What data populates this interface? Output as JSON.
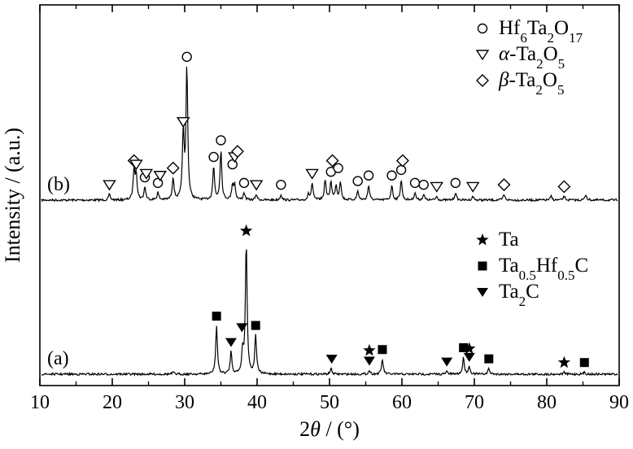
{
  "chart_data": {
    "type": "line",
    "xlabel": "2θ / (°)",
    "ylabel": "Intensity / (a.u.)",
    "xlim": [
      10,
      90
    ],
    "x_ticks": [
      10,
      20,
      30,
      40,
      50,
      60,
      70,
      80,
      90
    ],
    "grid": false,
    "series": [
      {
        "name": "(b)",
        "baseline": 1.0,
        "peaks": [
          {
            "x": 19.6,
            "h": 0.03
          },
          {
            "x": 23.0,
            "h": 0.16
          },
          {
            "x": 23.3,
            "h": 0.14
          },
          {
            "x": 24.5,
            "h": 0.07
          },
          {
            "x": 26.3,
            "h": 0.04
          },
          {
            "x": 28.4,
            "h": 0.12
          },
          {
            "x": 29.8,
            "h": 0.37
          },
          {
            "x": 30.3,
            "h": 0.72
          },
          {
            "x": 34.0,
            "h": 0.18
          },
          {
            "x": 35.0,
            "h": 0.27
          },
          {
            "x": 36.6,
            "h": 0.08
          },
          {
            "x": 36.9,
            "h": 0.08
          },
          {
            "x": 38.2,
            "h": 0.04
          },
          {
            "x": 39.9,
            "h": 0.03
          },
          {
            "x": 43.3,
            "h": 0.03
          },
          {
            "x": 47.1,
            "h": 0.03
          },
          {
            "x": 47.6,
            "h": 0.09
          },
          {
            "x": 49.4,
            "h": 0.11
          },
          {
            "x": 50.2,
            "h": 0.1
          },
          {
            "x": 50.9,
            "h": 0.08
          },
          {
            "x": 51.5,
            "h": 0.1
          },
          {
            "x": 53.9,
            "h": 0.05
          },
          {
            "x": 55.4,
            "h": 0.08
          },
          {
            "x": 58.6,
            "h": 0.08
          },
          {
            "x": 59.9,
            "h": 0.11
          },
          {
            "x": 61.8,
            "h": 0.04
          },
          {
            "x": 63.0,
            "h": 0.03
          },
          {
            "x": 64.8,
            "h": 0.02
          },
          {
            "x": 67.4,
            "h": 0.04
          },
          {
            "x": 69.8,
            "h": 0.02
          },
          {
            "x": 74.1,
            "h": 0.03
          },
          {
            "x": 80.6,
            "h": 0.02
          },
          {
            "x": 82.4,
            "h": 0.02
          },
          {
            "x": 85.4,
            "h": 0.03
          }
        ],
        "markers": [
          {
            "x": 19.6,
            "h": 0.03,
            "phase": "alpha"
          },
          {
            "x": 23.0,
            "h": 0.16,
            "phase": "beta"
          },
          {
            "x": 23.3,
            "h": 0.14,
            "phase": "alpha"
          },
          {
            "x": 24.5,
            "h": 0.07,
            "phase": "hf"
          },
          {
            "x": 24.7,
            "h": 0.09,
            "phase": "alpha"
          },
          {
            "x": 26.3,
            "h": 0.04,
            "phase": "hf"
          },
          {
            "x": 26.6,
            "h": 0.08,
            "phase": "alpha"
          },
          {
            "x": 28.4,
            "h": 0.12,
            "phase": "beta"
          },
          {
            "x": 29.8,
            "h": 0.37,
            "phase": "alpha"
          },
          {
            "x": 30.3,
            "h": 0.72,
            "phase": "hf"
          },
          {
            "x": 34.0,
            "h": 0.18,
            "phase": "hf"
          },
          {
            "x": 35.0,
            "h": 0.27,
            "phase": "hf"
          },
          {
            "x": 36.6,
            "h": 0.14,
            "phase": "hf"
          },
          {
            "x": 36.9,
            "h": 0.18,
            "phase": "alpha"
          },
          {
            "x": 37.3,
            "h": 0.21,
            "phase": "beta"
          },
          {
            "x": 38.2,
            "h": 0.04,
            "phase": "hf"
          },
          {
            "x": 39.9,
            "h": 0.03,
            "phase": "alpha"
          },
          {
            "x": 43.3,
            "h": 0.03,
            "phase": "hf"
          },
          {
            "x": 47.6,
            "h": 0.09,
            "phase": "alpha"
          },
          {
            "x": 50.2,
            "h": 0.1,
            "phase": "hf"
          },
          {
            "x": 50.4,
            "h": 0.16,
            "phase": "beta"
          },
          {
            "x": 51.2,
            "h": 0.12,
            "phase": "hf"
          },
          {
            "x": 53.9,
            "h": 0.05,
            "phase": "hf"
          },
          {
            "x": 55.4,
            "h": 0.08,
            "phase": "hf"
          },
          {
            "x": 58.6,
            "h": 0.08,
            "phase": "hf"
          },
          {
            "x": 59.9,
            "h": 0.11,
            "phase": "hf"
          },
          {
            "x": 60.1,
            "h": 0.16,
            "phase": "beta"
          },
          {
            "x": 61.8,
            "h": 0.04,
            "phase": "hf"
          },
          {
            "x": 63.0,
            "h": 0.03,
            "phase": "hf"
          },
          {
            "x": 64.8,
            "h": 0.02,
            "phase": "alpha"
          },
          {
            "x": 67.4,
            "h": 0.04,
            "phase": "hf"
          },
          {
            "x": 69.8,
            "h": 0.02,
            "phase": "alpha"
          },
          {
            "x": 74.1,
            "h": 0.03,
            "phase": "beta"
          },
          {
            "x": 82.4,
            "h": 0.02,
            "phase": "beta"
          }
        ]
      },
      {
        "name": "(a)",
        "baseline": 0.0,
        "peaks": [
          {
            "x": 28.4,
            "h": 0.01
          },
          {
            "x": 34.4,
            "h": 0.26
          },
          {
            "x": 36.4,
            "h": 0.12
          },
          {
            "x": 38.0,
            "h": 0.12
          },
          {
            "x": 38.5,
            "h": 0.72
          },
          {
            "x": 39.8,
            "h": 0.21
          },
          {
            "x": 50.2,
            "h": 0.03
          },
          {
            "x": 55.5,
            "h": 0.02
          },
          {
            "x": 57.3,
            "h": 0.08
          },
          {
            "x": 66.2,
            "h": 0.015
          },
          {
            "x": 68.5,
            "h": 0.09
          },
          {
            "x": 69.3,
            "h": 0.04
          },
          {
            "x": 72.0,
            "h": 0.03
          },
          {
            "x": 82.4,
            "h": 0.01
          },
          {
            "x": 85.2,
            "h": 0.01
          }
        ],
        "markers": [
          {
            "x": 34.4,
            "h": 0.26,
            "phase": "tahfc"
          },
          {
            "x": 36.4,
            "h": 0.12,
            "phase": "ta2c"
          },
          {
            "x": 37.9,
            "h": 0.2,
            "phase": "ta2c"
          },
          {
            "x": 38.5,
            "h": 0.72,
            "phase": "ta"
          },
          {
            "x": 39.8,
            "h": 0.21,
            "phase": "tahfc"
          },
          {
            "x": 50.3,
            "h": 0.03,
            "phase": "ta2c"
          },
          {
            "x": 55.5,
            "h": 0.02,
            "phase": "ta2c"
          },
          {
            "x": 55.5,
            "h": 0.075,
            "phase": "ta"
          },
          {
            "x": 57.3,
            "h": 0.08,
            "phase": "tahfc"
          },
          {
            "x": 66.2,
            "h": 0.015,
            "phase": "ta2c"
          },
          {
            "x": 68.5,
            "h": 0.09,
            "phase": "tahfc"
          },
          {
            "x": 69.3,
            "h": 0.04,
            "phase": "ta2c"
          },
          {
            "x": 69.3,
            "h": 0.085,
            "phase": "ta"
          },
          {
            "x": 72.0,
            "h": 0.03,
            "phase": "tahfc"
          },
          {
            "x": 82.4,
            "h": 0.01,
            "phase": "ta"
          },
          {
            "x": 85.2,
            "h": 0.01,
            "phase": "tahfc"
          }
        ]
      }
    ],
    "legend_b": [
      {
        "phase": "hf",
        "label_main": "Hf",
        "parts": [
          [
            "Hf",
            ""
          ],
          [
            "6",
            "sub"
          ],
          [
            "Ta",
            ""
          ],
          [
            "2",
            "sub"
          ],
          [
            "O",
            ""
          ],
          [
            "17",
            "sub"
          ]
        ],
        "symbol": "open-circle"
      },
      {
        "phase": "alpha",
        "parts": [
          [
            "α",
            "it"
          ],
          [
            "-Ta",
            ""
          ],
          [
            "2",
            "sub"
          ],
          [
            "O",
            ""
          ],
          [
            "5",
            "sub"
          ]
        ],
        "symbol": "open-down-triangle"
      },
      {
        "phase": "beta",
        "parts": [
          [
            "β",
            "it"
          ],
          [
            "-Ta",
            ""
          ],
          [
            "2",
            "sub"
          ],
          [
            "O",
            ""
          ],
          [
            "5",
            "sub"
          ]
        ],
        "symbol": "open-diamond"
      }
    ],
    "legend_a": [
      {
        "phase": "ta",
        "parts": [
          [
            "Ta",
            ""
          ]
        ],
        "symbol": "filled-star"
      },
      {
        "phase": "tahfc",
        "parts": [
          [
            "Ta",
            ""
          ],
          [
            "0.5",
            "sub"
          ],
          [
            "Hf",
            ""
          ],
          [
            "0.5",
            "sub"
          ],
          [
            "C",
            ""
          ]
        ],
        "symbol": "filled-square"
      },
      {
        "phase": "ta2c",
        "parts": [
          [
            "Ta",
            ""
          ],
          [
            "2",
            "sub"
          ],
          [
            "C",
            ""
          ]
        ],
        "symbol": "filled-down-triangle"
      }
    ],
    "legend_placement": "top-right"
  }
}
